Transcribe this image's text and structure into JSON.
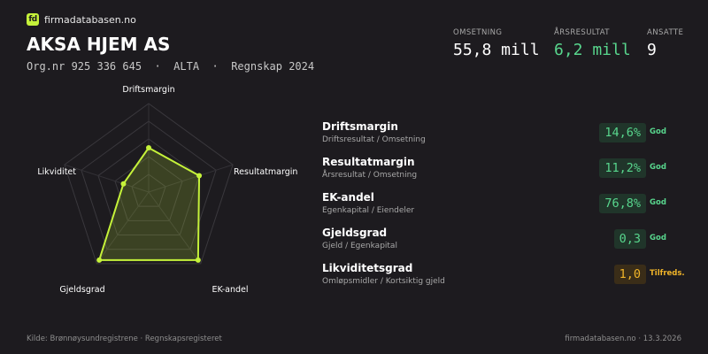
{
  "brand": {
    "logo_text": "fd",
    "name": "firmadatabasen.no"
  },
  "company": {
    "name": "AKSA HJEM AS",
    "meta": "Org.nr 925 336 645  ·  ALTA  ·  Regnskap 2024"
  },
  "stats": [
    {
      "label": "OMSETNING",
      "value": "55,8 mill",
      "color": "#ffffff"
    },
    {
      "label": "ÅRSRESULTAT",
      "value": "6,2 mill",
      "color": "#58d68d"
    },
    {
      "label": "ANSATTE",
      "value": "9",
      "color": "#ffffff"
    }
  ],
  "radar": {
    "axes": [
      "Driftsmargin",
      "Resultatmargin",
      "EK-andel",
      "Gjeldsgrad",
      "Likviditet"
    ],
    "scores": [
      0.5,
      0.6,
      0.95,
      0.95,
      0.3
    ],
    "stroke_color": "#c5f23a"
  },
  "metrics": [
    {
      "name": "Driftsmargin",
      "sub": "Driftsresultat / Omsetning",
      "value": "14,6%",
      "status": "God",
      "level": "good"
    },
    {
      "name": "Resultatmargin",
      "sub": "Årsresultat / Omsetning",
      "value": "11,2%",
      "status": "God",
      "level": "good"
    },
    {
      "name": "EK-andel",
      "sub": "Egenkapital / Eiendeler",
      "value": "76,8%",
      "status": "God",
      "level": "good"
    },
    {
      "name": "Gjeldsgrad",
      "sub": "Gjeld / Egenkapital",
      "value": "0,3",
      "status": "God",
      "level": "good"
    },
    {
      "name": "Likviditetsgrad",
      "sub": "Omløpsmidler / Kortsiktig gjeld",
      "value": "1,0",
      "status": "Tilfreds.",
      "level": "ok"
    }
  ],
  "footer": {
    "source": "Kilde: Brønnøysundregistrene · Regnskapsregisteret",
    "site_date": "firmadatabasen.no · 13.3.2026"
  }
}
